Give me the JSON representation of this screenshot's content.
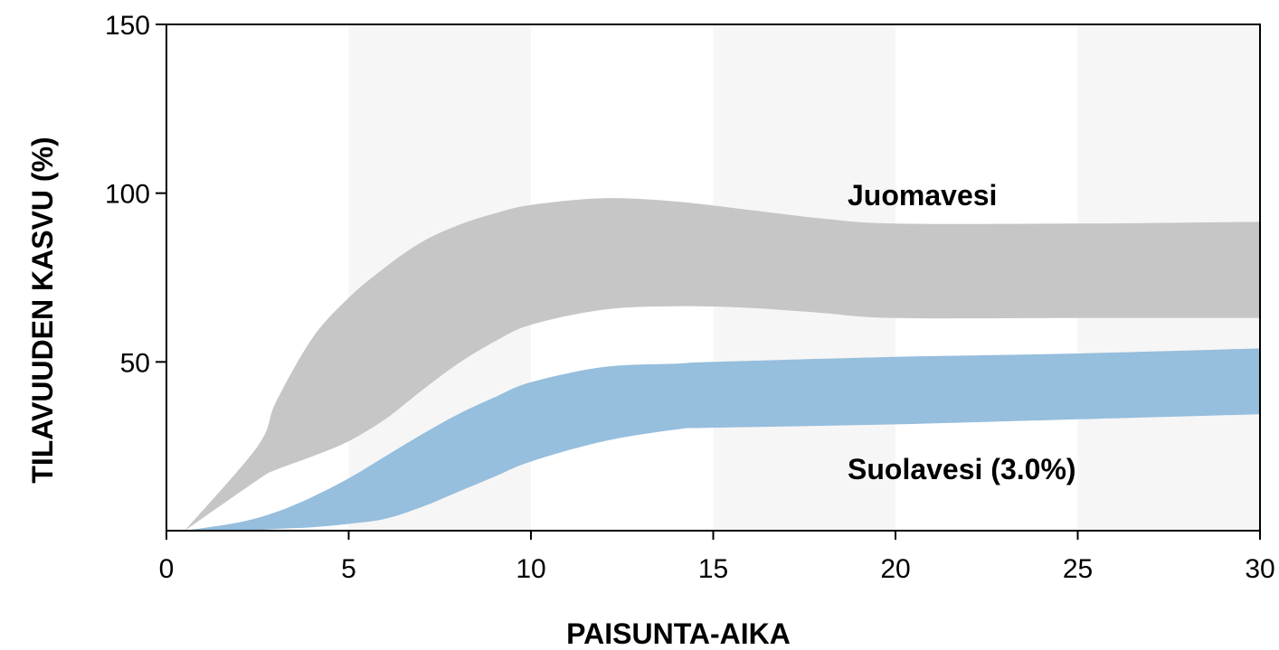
{
  "chart_data": {
    "type": "area",
    "title": "",
    "xlabel": "PAISUNTA-AIKA",
    "ylabel": "TILAVUUDEN KASVU (%)",
    "xlim": [
      0,
      30
    ],
    "ylim": [
      0,
      150
    ],
    "xticks": [
      0,
      5,
      10,
      15,
      20,
      25,
      30
    ],
    "yticks": [
      50,
      100,
      150
    ],
    "background_bands": [
      [
        5,
        10
      ],
      [
        15,
        20
      ],
      [
        25,
        30
      ]
    ],
    "series": [
      {
        "name": "Juomavesi",
        "color": "#c6c6c6",
        "x": [
          0.5,
          2.5,
          3.0,
          4.0,
          5.0,
          6.0,
          7.0,
          8.0,
          9.0,
          10.0,
          12.0,
          14.0,
          16.0,
          18.0,
          20.0,
          25.0,
          30.0
        ],
        "upper": [
          0.0,
          25.0,
          38.0,
          57.0,
          69.0,
          78.0,
          85.5,
          90.5,
          94.0,
          96.5,
          98.5,
          97.5,
          95.0,
          92.5,
          91.0,
          91.0,
          91.5
        ],
        "lower": [
          0.0,
          15.0,
          18.0,
          22.0,
          26.5,
          33.0,
          41.5,
          49.5,
          56.0,
          61.0,
          65.5,
          66.5,
          66.0,
          64.5,
          63.0,
          63.0,
          63.0
        ]
      },
      {
        "name": "Suolavesi (3.0%)",
        "color": "#96bedd",
        "x": [
          0.5,
          2.0,
          3.0,
          4.0,
          5.0,
          6.0,
          7.0,
          8.0,
          9.0,
          10.0,
          12.0,
          14.0,
          15.0,
          20.0,
          25.0,
          30.0
        ],
        "upper": [
          0.0,
          2.5,
          5.5,
          10.0,
          15.5,
          22.0,
          28.5,
          34.5,
          39.5,
          44.0,
          48.5,
          49.5,
          50.0,
          51.5,
          52.5,
          54.0
        ],
        "lower": [
          0.0,
          0.0,
          0.5,
          1.0,
          2.0,
          3.5,
          7.0,
          11.5,
          16.0,
          20.5,
          26.5,
          30.0,
          30.5,
          31.5,
          33.0,
          34.5
        ]
      }
    ]
  }
}
